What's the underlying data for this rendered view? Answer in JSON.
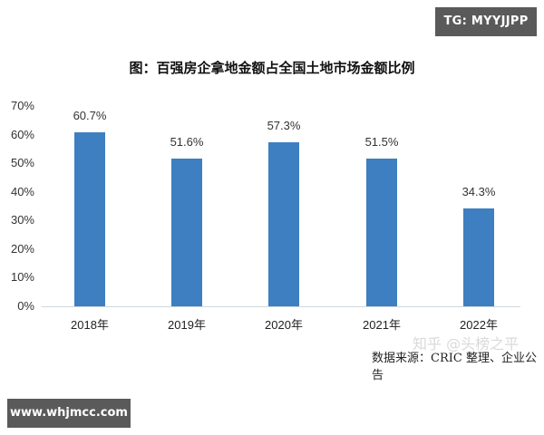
{
  "badges": {
    "top_right": "TG: MYYJJPP",
    "bottom_left": "www.whjmcc.com"
  },
  "watermark": "知乎 @头榜之平",
  "source": "数据来源：CRIC 整理、企业公告",
  "chart_data": {
    "type": "bar",
    "title": "图：百强房企拿地金额占全国土地市场金额比例",
    "xlabel": "",
    "ylabel": "",
    "categories": [
      "2018年",
      "2019年",
      "2020年",
      "2021年",
      "2022年"
    ],
    "values": [
      60.7,
      51.6,
      57.3,
      51.5,
      34.3
    ],
    "value_labels": [
      "60.7%",
      "51.6%",
      "57.3%",
      "51.5%",
      "34.3%"
    ],
    "ylim": [
      0,
      70
    ],
    "yticks": [
      "0%",
      "10%",
      "20%",
      "30%",
      "40%",
      "50%",
      "60%",
      "70%"
    ],
    "grid": false,
    "legend": null,
    "bar_color": "#3d7fc1"
  }
}
